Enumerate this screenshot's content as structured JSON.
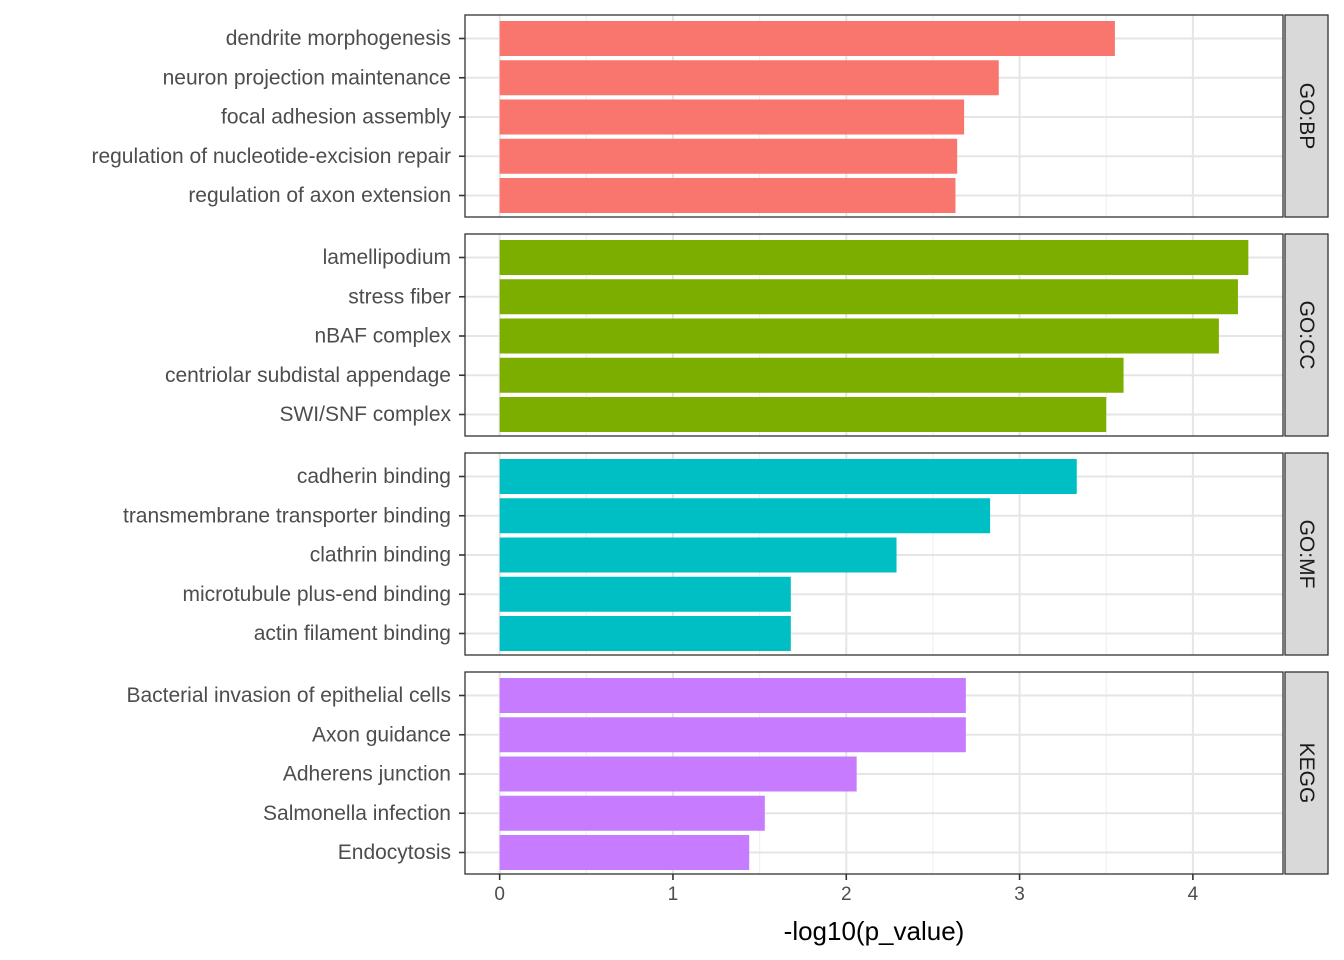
{
  "chart_data": {
    "type": "bar",
    "orientation": "horizontal",
    "faceted": true,
    "xlabel": "-log10(p_value)",
    "xlim": [
      -0.2,
      4.52
    ],
    "xticks": [
      0,
      1,
      2,
      3,
      4
    ],
    "grid": true,
    "panels": [
      {
        "name": "GO:BP",
        "color": "#F8766D",
        "categories": [
          "dendrite morphogenesis",
          "neuron projection maintenance",
          "focal adhesion assembly",
          "regulation of nucleotide-excision repair",
          "regulation of axon extension"
        ],
        "values": [
          3.55,
          2.88,
          2.68,
          2.64,
          2.63
        ]
      },
      {
        "name": "GO:CC",
        "color": "#7CAE00",
        "categories": [
          "lamellipodium",
          "stress fiber",
          "nBAF complex",
          "centriolar subdistal appendage",
          "SWI/SNF complex"
        ],
        "values": [
          4.32,
          4.26,
          4.15,
          3.6,
          3.5
        ]
      },
      {
        "name": "GO:MF",
        "color": "#00BFC4",
        "categories": [
          "cadherin binding",
          "transmembrane transporter binding",
          "clathrin binding",
          "microtubule plus-end binding",
          "actin filament binding"
        ],
        "values": [
          3.33,
          2.83,
          2.29,
          1.68,
          1.68
        ]
      },
      {
        "name": "KEGG",
        "color": "#C77CFF",
        "categories": [
          "Bacterial invasion of epithelial cells",
          "Axon guidance",
          "Adherens junction",
          "Salmonella infection",
          "Endocytosis"
        ],
        "values": [
          2.69,
          2.69,
          2.06,
          1.53,
          1.44
        ]
      }
    ]
  }
}
